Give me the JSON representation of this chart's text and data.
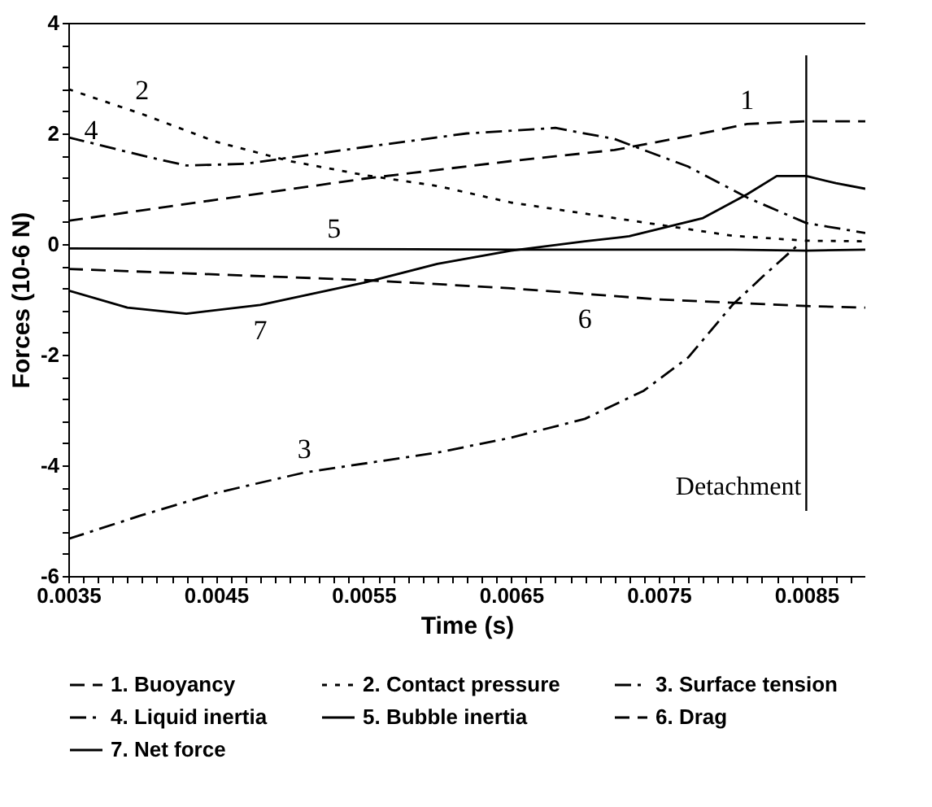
{
  "chart_data": {
    "type": "line",
    "xlabel": "Time (s)",
    "ylabel": "Forces (10-6 N)",
    "xlim": [
      0.0035,
      0.0089
    ],
    "ylim": [
      -6,
      4
    ],
    "xticks": [
      {
        "value": 0.0035,
        "label": "0.0035"
      },
      {
        "value": 0.0045,
        "label": "0.0045"
      },
      {
        "value": 0.0055,
        "label": "0.0055"
      },
      {
        "value": 0.0065,
        "label": "0.0065"
      },
      {
        "value": 0.0075,
        "label": "0.0075"
      },
      {
        "value": 0.0085,
        "label": "0.0085"
      },
      {
        "value": 0.0036,
        "label": null
      },
      {
        "value": 0.0037,
        "label": null
      },
      {
        "value": 0.0038,
        "label": null
      },
      {
        "value": 0.0039,
        "label": null
      },
      {
        "value": 0.004,
        "label": null
      },
      {
        "value": 0.0041,
        "label": null
      },
      {
        "value": 0.0042,
        "label": null
      },
      {
        "value": 0.0043,
        "label": null
      },
      {
        "value": 0.0044,
        "label": null
      },
      {
        "value": 0.0046,
        "label": null
      },
      {
        "value": 0.0047,
        "label": null
      },
      {
        "value": 0.0048,
        "label": null
      },
      {
        "value": 0.0049,
        "label": null
      },
      {
        "value": 0.005,
        "label": null
      },
      {
        "value": 0.0051,
        "label": null
      },
      {
        "value": 0.0052,
        "label": null
      },
      {
        "value": 0.0053,
        "label": null
      },
      {
        "value": 0.0054,
        "label": null
      },
      {
        "value": 0.0056,
        "label": null
      },
      {
        "value": 0.0057,
        "label": null
      },
      {
        "value": 0.0058,
        "label": null
      },
      {
        "value": 0.0059,
        "label": null
      },
      {
        "value": 0.006,
        "label": null
      },
      {
        "value": 0.0061,
        "label": null
      },
      {
        "value": 0.0062,
        "label": null
      },
      {
        "value": 0.0063,
        "label": null
      },
      {
        "value": 0.0064,
        "label": null
      },
      {
        "value": 0.0066,
        "label": null
      },
      {
        "value": 0.0067,
        "label": null
      },
      {
        "value": 0.0068,
        "label": null
      },
      {
        "value": 0.0069,
        "label": null
      },
      {
        "value": 0.007,
        "label": null
      },
      {
        "value": 0.0071,
        "label": null
      },
      {
        "value": 0.0072,
        "label": null
      },
      {
        "value": 0.0073,
        "label": null
      },
      {
        "value": 0.0074,
        "label": null
      },
      {
        "value": 0.0076,
        "label": null
      },
      {
        "value": 0.0077,
        "label": null
      },
      {
        "value": 0.0078,
        "label": null
      },
      {
        "value": 0.0079,
        "label": null
      },
      {
        "value": 0.008,
        "label": null
      },
      {
        "value": 0.0081,
        "label": null
      },
      {
        "value": 0.0082,
        "label": null
      },
      {
        "value": 0.0083,
        "label": null
      },
      {
        "value": 0.0084,
        "label": null
      },
      {
        "value": 0.0086,
        "label": null
      },
      {
        "value": 0.0087,
        "label": null
      },
      {
        "value": 0.0088,
        "label": null
      }
    ],
    "yticks": [
      -6,
      -4,
      -2,
      0,
      2,
      4,
      {
        "value": -5.6,
        "label": null
      },
      {
        "value": -5.2,
        "label": null
      },
      {
        "value": -4.8,
        "label": null
      },
      {
        "value": -4.4,
        "label": null
      },
      {
        "value": -3.6,
        "label": null
      },
      {
        "value": -3.2,
        "label": null
      },
      {
        "value": -2.8,
        "label": null
      },
      {
        "value": -2.4,
        "label": null
      },
      {
        "value": -1.6,
        "label": null
      },
      {
        "value": -1.2,
        "label": null
      },
      {
        "value": -0.8,
        "label": null
      },
      {
        "value": -0.4,
        "label": null
      },
      {
        "value": 0.4,
        "label": null
      },
      {
        "value": 0.8,
        "label": null
      },
      {
        "value": 1.2,
        "label": null
      },
      {
        "value": 1.6,
        "label": null
      },
      {
        "value": 2.4,
        "label": null
      },
      {
        "value": 2.8,
        "label": null
      },
      {
        "value": 3.2,
        "label": null
      },
      {
        "value": 3.6,
        "label": null
      }
    ],
    "grid": false,
    "legend": "bottom",
    "marker": "none",
    "series": [
      {
        "name": "1. Buoyancy",
        "color": "#000000",
        "line_style": "dashed",
        "x": [
          0.0035,
          0.0045,
          0.0055,
          0.0065,
          0.0072,
          0.0077,
          0.0081,
          0.0085,
          0.0089
        ],
        "values": [
          0.42,
          0.8,
          1.18,
          1.5,
          1.7,
          1.95,
          2.17,
          2.22,
          2.22
        ]
      },
      {
        "name": "2. Contact pressure",
        "color": "#000000",
        "line_style": "dotted",
        "x": [
          0.0035,
          0.004,
          0.0045,
          0.005,
          0.0055,
          0.006,
          0.0065,
          0.007,
          0.0075,
          0.008,
          0.0085,
          0.0089
        ],
        "values": [
          2.8,
          2.35,
          1.85,
          1.5,
          1.25,
          1.05,
          0.75,
          0.55,
          0.35,
          0.15,
          0.06,
          0.05
        ]
      },
      {
        "name": "3. Surface tension",
        "color": "#000000",
        "line_style": "dashdot",
        "x": [
          0.0035,
          0.004,
          0.0045,
          0.0051,
          0.006,
          0.0065,
          0.007,
          0.0074,
          0.0077,
          0.008,
          0.0082,
          0.00843
        ],
        "values": [
          -5.33,
          -4.9,
          -4.5,
          -4.13,
          -3.77,
          -3.5,
          -3.16,
          -2.65,
          -2.05,
          -1.1,
          -0.6,
          -0.05
        ]
      },
      {
        "name": "4. Liquid inertia",
        "color": "#000000",
        "line_style": "dashdot",
        "x": [
          0.0035,
          0.004,
          0.0043,
          0.0047,
          0.0055,
          0.0062,
          0.0068,
          0.0072,
          0.0077,
          0.0081,
          0.0085,
          0.0089
        ],
        "values": [
          1.93,
          1.6,
          1.42,
          1.45,
          1.75,
          2.0,
          2.1,
          1.9,
          1.4,
          0.84,
          0.38,
          0.2
        ]
      },
      {
        "name": "5. Bubble inertia",
        "color": "#000000",
        "line_style": "solid",
        "x": [
          0.0035,
          0.0053,
          0.0065,
          0.008,
          0.0085,
          0.0089
        ],
        "values": [
          -0.08,
          -0.09,
          -0.1,
          -0.1,
          -0.12,
          -0.1
        ]
      },
      {
        "name": "6. Drag",
        "color": "#000000",
        "line_style": "dashed",
        "x": [
          0.0035,
          0.0045,
          0.0055,
          0.0065,
          0.007,
          0.0075,
          0.0085,
          0.0089
        ],
        "values": [
          -0.45,
          -0.55,
          -0.65,
          -0.8,
          -0.9,
          -1.0,
          -1.12,
          -1.15
        ]
      },
      {
        "name": "7. Net force",
        "color": "#000000",
        "line_style": "solid",
        "x": [
          0.0035,
          0.0039,
          0.0043,
          0.0048,
          0.0055,
          0.006,
          0.0065,
          0.007,
          0.0073,
          0.0078,
          0.0081,
          0.0083,
          0.0085,
          0.0087,
          0.0089
        ],
        "values": [
          -0.84,
          -1.15,
          -1.26,
          -1.1,
          -0.7,
          -0.36,
          -0.12,
          0.05,
          0.14,
          0.47,
          0.9,
          1.23,
          1.23,
          1.1,
          1.0
        ]
      }
    ],
    "ref_lines": [
      {
        "axis": "x",
        "value": 0.0085,
        "label": "Detachment",
        "color": "#000000"
      }
    ],
    "annotations": [
      {
        "text": "1",
        "x": 0.0081,
        "y": 2.17
      },
      {
        "text": "2",
        "x": 0.004,
        "y": 2.35
      },
      {
        "text": "3",
        "x": 0.0051,
        "y": -4.13
      },
      {
        "text": "4",
        "x": 0.0035,
        "y": 1.93
      },
      {
        "text": "5",
        "x": 0.0053,
        "y": -0.09
      },
      {
        "text": "6",
        "x": 0.007,
        "y": -0.9
      },
      {
        "text": "7",
        "x": 0.0048,
        "y": -1.1
      }
    ]
  }
}
